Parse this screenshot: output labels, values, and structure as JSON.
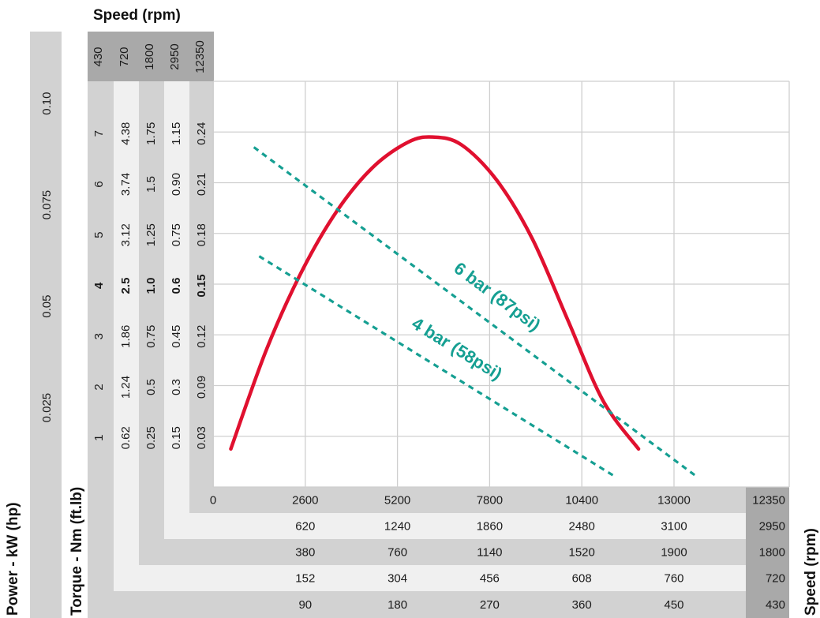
{
  "chart_data": {
    "type": "line",
    "title": "Speed (rpm)",
    "xlabel_right": "Speed (rpm)",
    "ylabel_torque": "Torque - Nm (ft.lb)",
    "ylabel_power": "Power - kW (hp)",
    "x_scales": [
      {
        "max_label": "12350",
        "ticks": [
          "0",
          "2600",
          "5200",
          "7800",
          "10400",
          "13000"
        ]
      },
      {
        "max_label": "2950",
        "ticks": [
          "620",
          "1240",
          "1860",
          "2480",
          "3100"
        ]
      },
      {
        "max_label": "1800",
        "ticks": [
          "380",
          "760",
          "1140",
          "1520",
          "1900"
        ]
      },
      {
        "max_label": "720",
        "ticks": [
          "152",
          "304",
          "456",
          "608",
          "760"
        ]
      },
      {
        "max_label": "430",
        "ticks": [
          "90",
          "180",
          "270",
          "360",
          "450"
        ]
      }
    ],
    "top_speeds": [
      "430",
      "720",
      "1800",
      "2950",
      "12350"
    ],
    "y_columns": [
      {
        "labels": [
          "1",
          "2",
          "3",
          "4",
          "5",
          "6",
          "7"
        ]
      },
      {
        "labels": [
          "0.62",
          "1.24",
          "1.86",
          "2.5",
          "3.12",
          "3.74",
          "4.38"
        ]
      },
      {
        "labels": [
          "0.25",
          "0.5",
          "0.75",
          "1.0",
          "1.25",
          "1.5",
          "1.75"
        ]
      },
      {
        "labels": [
          "0.15",
          "0.3",
          "0.45",
          "0.6",
          "0.75",
          "0.90",
          "1.15"
        ]
      },
      {
        "labels": [
          "0.03",
          "0.09",
          "0.12",
          "0.15",
          "0.18",
          "0.21",
          "0.24"
        ]
      }
    ],
    "bold_row_index": 3,
    "power_labels": [
      "0.025",
      "0.05",
      "0.075",
      "0.10"
    ],
    "xlim": [
      0,
      16250
    ],
    "ylim": [
      0,
      8
    ],
    "grid": true,
    "series": [
      {
        "color": "#e0102f",
        "style": "solid",
        "x": [
          500,
          1500,
          2500,
          3500,
          4500,
          5500,
          6200,
          7000,
          8000,
          9000,
          10000,
          11000,
          12000
        ],
        "y": [
          0.75,
          2.7,
          4.25,
          5.45,
          6.3,
          6.8,
          6.9,
          6.75,
          6.05,
          4.9,
          3.3,
          1.7,
          0.75
        ]
      },
      {
        "name": "6 bar (87psi)",
        "color": "#159f92",
        "style": "dashed",
        "x": [
          1150,
          13650
        ],
        "y": [
          6.7,
          0.2
        ]
      },
      {
        "name": "4 bar (58psi)",
        "color": "#159f92",
        "style": "dashed",
        "x": [
          1300,
          11350
        ],
        "y": [
          4.55,
          0.2
        ]
      }
    ]
  }
}
